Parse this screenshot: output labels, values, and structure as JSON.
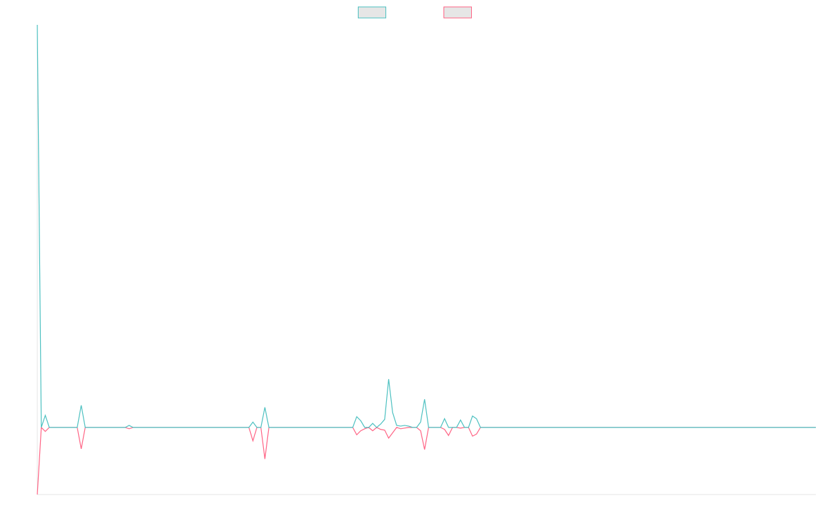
{
  "chart_data": {
    "type": "line",
    "title": "",
    "xlabel": "",
    "ylabel": "",
    "x_count": 196,
    "ylim": [
      -1,
      6
    ],
    "grid": false,
    "legend_position": "top-center",
    "series": [
      {
        "name": "",
        "color": "#4bc0c0",
        "points": [
          [
            0,
            6.0
          ],
          [
            1,
            0.0
          ],
          [
            2,
            0.18
          ],
          [
            3,
            0.0
          ],
          [
            10,
            0.0
          ],
          [
            11,
            0.33
          ],
          [
            12,
            0.0
          ],
          [
            22,
            0.0
          ],
          [
            23,
            0.03
          ],
          [
            24,
            0.0
          ],
          [
            53,
            0.0
          ],
          [
            54,
            0.08
          ],
          [
            55,
            0.0
          ],
          [
            56,
            0.0
          ],
          [
            57,
            0.3
          ],
          [
            58,
            0.0
          ],
          [
            79,
            0.0
          ],
          [
            80,
            0.16
          ],
          [
            81,
            0.1
          ],
          [
            82,
            0.0
          ],
          [
            83,
            0.0
          ],
          [
            84,
            0.06
          ],
          [
            85,
            0.0
          ],
          [
            86,
            0.05
          ],
          [
            87,
            0.12
          ],
          [
            88,
            0.72
          ],
          [
            89,
            0.22
          ],
          [
            90,
            0.03
          ],
          [
            91,
            0.02
          ],
          [
            92,
            0.03
          ],
          [
            93,
            0.02
          ],
          [
            94,
            0.0
          ],
          [
            95,
            0.0
          ],
          [
            96,
            0.08
          ],
          [
            97,
            0.42
          ],
          [
            98,
            0.0
          ],
          [
            101,
            0.0
          ],
          [
            102,
            0.13
          ],
          [
            103,
            0.0
          ],
          [
            105,
            0.0
          ],
          [
            106,
            0.11
          ],
          [
            107,
            0.0
          ],
          [
            108,
            0.0
          ],
          [
            109,
            0.17
          ],
          [
            110,
            0.13
          ],
          [
            111,
            0.0
          ],
          [
            195,
            0.0
          ]
        ]
      },
      {
        "name": "",
        "color": "#ff6384",
        "points": [
          [
            0,
            -1.0
          ],
          [
            1,
            0.0
          ],
          [
            2,
            -0.06
          ],
          [
            3,
            0.0
          ],
          [
            10,
            0.0
          ],
          [
            11,
            -0.32
          ],
          [
            12,
            0.0
          ],
          [
            22,
            0.0
          ],
          [
            23,
            -0.02
          ],
          [
            24,
            0.0
          ],
          [
            53,
            0.0
          ],
          [
            54,
            -0.2
          ],
          [
            55,
            0.0
          ],
          [
            56,
            0.0
          ],
          [
            57,
            -0.47
          ],
          [
            58,
            0.0
          ],
          [
            79,
            0.0
          ],
          [
            80,
            -0.11
          ],
          [
            81,
            -0.05
          ],
          [
            82,
            -0.02
          ],
          [
            83,
            0.0
          ],
          [
            84,
            -0.05
          ],
          [
            85,
            0.0
          ],
          [
            86,
            -0.03
          ],
          [
            87,
            -0.04
          ],
          [
            88,
            -0.16
          ],
          [
            89,
            -0.08
          ],
          [
            90,
            0.0
          ],
          [
            91,
            -0.02
          ],
          [
            92,
            -0.01
          ],
          [
            93,
            0.0
          ],
          [
            94,
            0.0
          ],
          [
            95,
            0.0
          ],
          [
            96,
            -0.05
          ],
          [
            97,
            -0.33
          ],
          [
            98,
            0.0
          ],
          [
            101,
            0.0
          ],
          [
            102,
            -0.03
          ],
          [
            103,
            -0.12
          ],
          [
            104,
            0.0
          ],
          [
            105,
            0.0
          ],
          [
            106,
            -0.01
          ],
          [
            107,
            0.0
          ],
          [
            108,
            0.0
          ],
          [
            109,
            -0.13
          ],
          [
            110,
            -0.1
          ],
          [
            111,
            0.0
          ],
          [
            195,
            0.0
          ]
        ]
      }
    ]
  }
}
